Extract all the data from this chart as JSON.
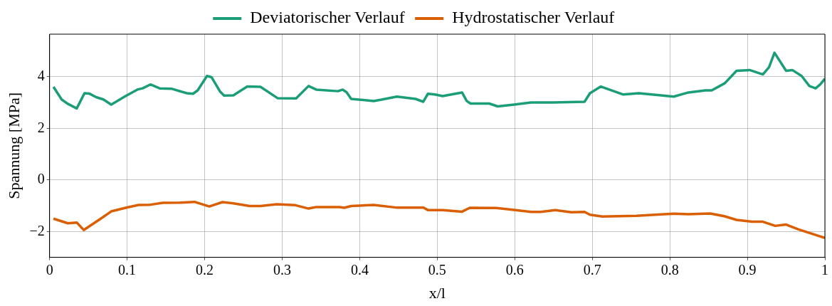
{
  "chart_data": {
    "type": "line",
    "xlabel": "x/l",
    "ylabel": "Spannung [MPa]",
    "xlim": [
      0,
      1
    ],
    "ylim": [
      -3,
      5.65
    ],
    "xticks": [
      0,
      0.1,
      0.2,
      0.3,
      0.4,
      0.5,
      0.6,
      0.7,
      0.8,
      0.9,
      1
    ],
    "yticks": [
      {
        "value": -2,
        "label": "−2"
      },
      0,
      2,
      4
    ],
    "grid": true,
    "legend": "top",
    "marker": "none",
    "line_style": "solid",
    "series": [
      {
        "name": "Deviatorischer Verlauf",
        "color": "#1b9e77",
        "x": [
          0.005,
          0.0155,
          0.0235,
          0.035,
          0.045,
          0.051,
          0.06,
          0.0694,
          0.0795,
          0.098,
          0.114,
          0.12,
          0.13,
          0.142,
          0.158,
          0.177,
          0.185,
          0.191,
          0.203,
          0.209,
          0.22,
          0.225,
          0.237,
          0.255,
          0.272,
          0.294,
          0.318,
          0.334,
          0.344,
          0.372,
          0.378,
          0.383,
          0.389,
          0.418,
          0.428,
          0.448,
          0.472,
          0.482,
          0.488,
          0.497,
          0.507,
          0.532,
          0.538,
          0.543,
          0.567,
          0.578,
          0.599,
          0.621,
          0.649,
          0.69,
          0.697,
          0.711,
          0.74,
          0.76,
          0.805,
          0.824,
          0.846,
          0.854,
          0.871,
          0.886,
          0.903,
          0.92,
          0.928,
          0.935,
          0.95,
          0.958,
          0.97,
          0.98,
          0.988,
          0.994,
          1.0
        ],
        "values": [
          3.61,
          3.12,
          2.95,
          2.77,
          3.36,
          3.35,
          3.21,
          3.12,
          2.92,
          3.25,
          3.51,
          3.55,
          3.7,
          3.55,
          3.53,
          3.36,
          3.34,
          3.47,
          4.03,
          3.98,
          3.42,
          3.27,
          3.28,
          3.62,
          3.61,
          3.17,
          3.16,
          3.64,
          3.5,
          3.44,
          3.5,
          3.4,
          3.14,
          3.06,
          3.11,
          3.23,
          3.14,
          3.03,
          3.34,
          3.31,
          3.25,
          3.39,
          3.06,
          2.96,
          2.96,
          2.85,
          2.92,
          3.0,
          3.0,
          3.03,
          3.36,
          3.62,
          3.31,
          3.36,
          3.23,
          3.39,
          3.47,
          3.47,
          3.75,
          4.23,
          4.26,
          4.09,
          4.37,
          4.93,
          4.23,
          4.26,
          4.03,
          3.64,
          3.55,
          3.7,
          3.92
        ]
      },
      {
        "name": "Hydrostatischer Verlauf",
        "color": "#d95f02",
        "x": [
          0.005,
          0.0235,
          0.035,
          0.044,
          0.066,
          0.0795,
          0.101,
          0.115,
          0.13,
          0.146,
          0.168,
          0.187,
          0.206,
          0.223,
          0.237,
          0.258,
          0.272,
          0.293,
          0.317,
          0.334,
          0.344,
          0.374,
          0.38,
          0.389,
          0.418,
          0.447,
          0.482,
          0.488,
          0.507,
          0.532,
          0.542,
          0.576,
          0.595,
          0.621,
          0.633,
          0.652,
          0.673,
          0.69,
          0.697,
          0.713,
          0.757,
          0.805,
          0.824,
          0.852,
          0.871,
          0.886,
          0.906,
          0.92,
          0.936,
          0.95,
          0.966,
          1.0
        ],
        "values": [
          -1.5,
          -1.68,
          -1.65,
          -1.94,
          -1.5,
          -1.22,
          -1.06,
          -0.97,
          -0.96,
          -0.89,
          -0.88,
          -0.85,
          -1.03,
          -0.86,
          -0.91,
          -1.01,
          -1.01,
          -0.94,
          -0.98,
          -1.11,
          -1.05,
          -1.05,
          -1.08,
          -1.01,
          -0.97,
          -1.07,
          -1.07,
          -1.17,
          -1.17,
          -1.23,
          -1.08,
          -1.09,
          -1.15,
          -1.24,
          -1.24,
          -1.17,
          -1.25,
          -1.24,
          -1.35,
          -1.42,
          -1.39,
          -1.31,
          -1.33,
          -1.3,
          -1.41,
          -1.55,
          -1.62,
          -1.62,
          -1.78,
          -1.73,
          -1.92,
          -2.25
        ]
      }
    ]
  }
}
